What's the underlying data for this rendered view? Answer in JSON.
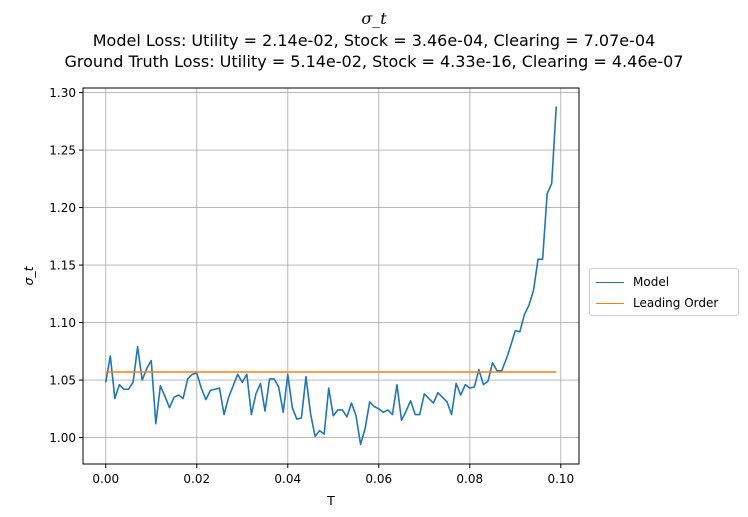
{
  "chart_data": {
    "type": "line",
    "title": "σ_t",
    "subtitle_lines": [
      "Model Loss: Utility = 2.14e-02, Stock = 3.46e-04, Clearing = 7.07e-04",
      "Ground Truth Loss: Utility = 5.14e-02, Stock = 4.33e-16, Clearing = 4.46e-07"
    ],
    "xlabel": "T",
    "ylabel": "σ_t",
    "xlim": [
      -0.005,
      0.104
    ],
    "ylim": [
      0.977,
      1.304
    ],
    "xticks": [
      0.0,
      0.02,
      0.04,
      0.06,
      0.08,
      0.1
    ],
    "xtick_labels": [
      "0.00",
      "0.02",
      "0.04",
      "0.06",
      "0.08",
      "0.10"
    ],
    "yticks": [
      1.0,
      1.05,
      1.1,
      1.15,
      1.2,
      1.25,
      1.3
    ],
    "ytick_labels": [
      "1.00",
      "1.05",
      "1.10",
      "1.15",
      "1.20",
      "1.25",
      "1.30"
    ],
    "grid": true,
    "legend_position": "right",
    "series": [
      {
        "name": "Model",
        "color": "#1f77b4",
        "x": [
          0.0,
          0.001,
          0.002,
          0.003,
          0.004,
          0.005,
          0.006,
          0.007,
          0.008,
          0.009,
          0.01,
          0.011,
          0.012,
          0.013,
          0.014,
          0.015,
          0.016,
          0.017,
          0.018,
          0.019,
          0.02,
          0.021,
          0.022,
          0.023,
          0.024,
          0.025,
          0.026,
          0.027,
          0.028,
          0.029,
          0.03,
          0.031,
          0.032,
          0.033,
          0.034,
          0.035,
          0.036,
          0.037,
          0.038,
          0.039,
          0.04,
          0.041,
          0.042,
          0.043,
          0.044,
          0.045,
          0.046,
          0.047,
          0.048,
          0.049,
          0.05,
          0.051,
          0.052,
          0.053,
          0.054,
          0.055,
          0.056,
          0.057,
          0.058,
          0.059,
          0.06,
          0.061,
          0.062,
          0.063,
          0.064,
          0.065,
          0.066,
          0.067,
          0.068,
          0.069,
          0.07,
          0.071,
          0.072,
          0.073,
          0.074,
          0.075,
          0.076,
          0.077,
          0.078,
          0.079,
          0.08,
          0.081,
          0.082,
          0.083,
          0.084,
          0.085,
          0.086,
          0.087,
          0.088,
          0.089,
          0.09,
          0.091,
          0.092,
          0.093,
          0.094,
          0.095,
          0.096,
          0.097,
          0.098,
          0.099
        ],
        "y": [
          1.048,
          1.071,
          1.034,
          1.046,
          1.042,
          1.042,
          1.048,
          1.079,
          1.05,
          1.06,
          1.067,
          1.012,
          1.045,
          1.036,
          1.026,
          1.035,
          1.037,
          1.034,
          1.051,
          1.055,
          1.056,
          1.043,
          1.033,
          1.041,
          1.042,
          1.043,
          1.02,
          1.035,
          1.045,
          1.055,
          1.048,
          1.055,
          1.02,
          1.038,
          1.047,
          1.023,
          1.051,
          1.051,
          1.044,
          1.022,
          1.055,
          1.026,
          1.016,
          1.017,
          1.053,
          1.021,
          1.001,
          1.006,
          1.003,
          1.043,
          1.019,
          1.024,
          1.024,
          1.018,
          1.03,
          1.019,
          0.994,
          1.008,
          1.031,
          1.027,
          1.025,
          1.022,
          1.024,
          1.02,
          1.046,
          1.015,
          1.023,
          1.032,
          1.02,
          1.02,
          1.038,
          1.034,
          1.03,
          1.039,
          1.035,
          1.031,
          1.02,
          1.047,
          1.037,
          1.046,
          1.043,
          1.044,
          1.059,
          1.046,
          1.049,
          1.065,
          1.058,
          1.058,
          1.068,
          1.08,
          1.093,
          1.092,
          1.107,
          1.115,
          1.128,
          1.155,
          1.155,
          1.212,
          1.221,
          1.288
        ]
      },
      {
        "name": "Leading Order",
        "color": "#ff7f0e",
        "x": [
          0.0,
          0.099
        ],
        "y": [
          1.057,
          1.057
        ]
      }
    ]
  }
}
